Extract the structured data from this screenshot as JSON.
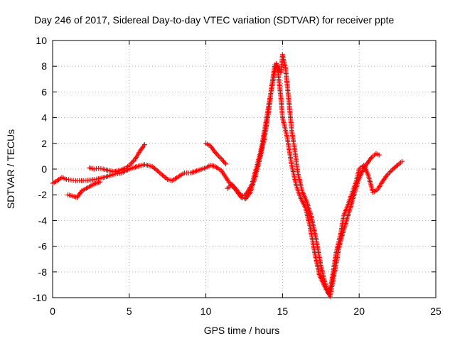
{
  "chart_data": {
    "type": "scatter",
    "title": "Day 246 of 2017, Sidereal Day-to-day VTEC variation (SDTVAR) for receiver ppte",
    "xlabel": "GPS time / hours",
    "ylabel": "SDTVAR / TECUs",
    "xlim": [
      0,
      25
    ],
    "ylim": [
      -10,
      10
    ],
    "xticks": [
      "0",
      "5",
      "10",
      "15",
      "20",
      "25"
    ],
    "yticks": [
      "-10",
      "-8",
      "-6",
      "-4",
      "-2",
      "0",
      "2",
      "4",
      "6",
      "8",
      "10"
    ],
    "grid": true,
    "marker": "+",
    "color": "#ff0000",
    "series": [
      {
        "points": [
          [
            0.0,
            -1.1
          ],
          [
            0.3,
            -0.9
          ],
          [
            0.6,
            -0.65
          ],
          [
            0.9,
            -0.8
          ],
          [
            1.2,
            -0.85
          ],
          [
            1.5,
            -0.9
          ],
          [
            2.0,
            -0.9
          ],
          [
            2.5,
            -0.85
          ],
          [
            3.0,
            -0.75
          ],
          [
            3.5,
            -0.6
          ],
          [
            4.0,
            -0.4
          ],
          [
            4.5,
            -0.3
          ],
          [
            5.0,
            0.0
          ],
          [
            5.5,
            0.2
          ],
          [
            6.0,
            0.35
          ],
          [
            6.5,
            0.2
          ],
          [
            7.0,
            -0.3
          ],
          [
            7.5,
            -0.8
          ],
          [
            7.8,
            -0.9
          ],
          [
            8.2,
            -0.6
          ],
          [
            8.6,
            -0.3
          ],
          [
            9.0,
            -0.3
          ],
          [
            9.5,
            -0.1
          ],
          [
            10.0,
            0.1
          ],
          [
            10.3,
            0.3
          ],
          [
            10.6,
            0.2
          ],
          [
            11.0,
            -0.1
          ],
          [
            11.5,
            -1.0
          ],
          [
            12.0,
            -1.7
          ],
          [
            12.3,
            -2.2
          ],
          [
            12.6,
            -2.3
          ],
          [
            12.9,
            -1.8
          ],
          [
            13.2,
            -0.7
          ],
          [
            13.5,
            0.7
          ],
          [
            13.8,
            2.3
          ],
          [
            14.1,
            4.5
          ],
          [
            14.3,
            6.5
          ],
          [
            14.5,
            8.1
          ],
          [
            14.7,
            7.6
          ],
          [
            14.9,
            5.5
          ],
          [
            15.0,
            4.0
          ],
          [
            15.3,
            2.5
          ],
          [
            15.6,
            0.3
          ],
          [
            15.9,
            -1.3
          ],
          [
            16.2,
            -2.3
          ],
          [
            16.5,
            -3.0
          ],
          [
            16.8,
            -4.5
          ],
          [
            17.1,
            -6.5
          ],
          [
            17.4,
            -8.2
          ],
          [
            17.7,
            -9.0
          ],
          [
            18.0,
            -9.7
          ],
          [
            18.2,
            -8.8
          ],
          [
            18.5,
            -6.5
          ],
          [
            18.8,
            -5.0
          ],
          [
            19.0,
            -3.6
          ],
          [
            19.2,
            -3.0
          ],
          [
            19.5,
            -2.0
          ],
          [
            19.8,
            -1.0
          ],
          [
            20.0,
            0.0
          ],
          [
            20.3,
            0.3
          ],
          [
            20.6,
            -0.5
          ],
          [
            20.9,
            -1.8
          ],
          [
            21.2,
            -1.6
          ],
          [
            21.5,
            -1.0
          ],
          [
            21.8,
            -0.5
          ],
          [
            22.2,
            0.0
          ],
          [
            22.6,
            0.4
          ],
          [
            22.8,
            0.6
          ]
        ]
      },
      {
        "points": [
          [
            1.0,
            -2.0
          ],
          [
            1.3,
            -2.1
          ],
          [
            1.6,
            -2.2
          ],
          [
            1.9,
            -1.7
          ],
          [
            2.2,
            -1.5
          ],
          [
            2.5,
            -1.3
          ],
          [
            2.8,
            -1.1
          ],
          [
            3.1,
            -1.0
          ]
        ]
      },
      {
        "points": [
          [
            2.4,
            0.1
          ],
          [
            2.7,
            0.0
          ],
          [
            3.0,
            0.05
          ],
          [
            3.3,
            0.0
          ],
          [
            3.6,
            -0.1
          ],
          [
            4.0,
            -0.2
          ],
          [
            4.4,
            -0.1
          ],
          [
            4.8,
            0.1
          ],
          [
            5.1,
            0.4
          ],
          [
            5.4,
            0.8
          ],
          [
            5.7,
            1.4
          ],
          [
            6.0,
            1.9
          ]
        ]
      },
      {
        "points": [
          [
            10.0,
            2.0
          ],
          [
            10.3,
            1.8
          ],
          [
            10.6,
            1.3
          ],
          [
            11.0,
            0.8
          ],
          [
            11.3,
            0.4
          ]
        ]
      },
      {
        "points": [
          [
            11.4,
            -1.5
          ],
          [
            11.7,
            -1.2
          ],
          [
            12.0,
            -1.6
          ],
          [
            12.3,
            -2.1
          ],
          [
            12.6,
            -2.0
          ],
          [
            13.0,
            -1.2
          ],
          [
            13.3,
            0.1
          ],
          [
            13.6,
            1.5
          ],
          [
            13.9,
            3.5
          ],
          [
            14.1,
            5.0
          ],
          [
            14.4,
            7.0
          ],
          [
            14.6,
            8.2
          ],
          [
            14.9,
            7.5
          ],
          [
            15.0,
            8.9
          ],
          [
            15.2,
            7.8
          ],
          [
            15.4,
            5.5
          ],
          [
            15.6,
            3.0
          ],
          [
            15.8,
            1.5
          ],
          [
            16.0,
            -0.3
          ],
          [
            16.3,
            -1.8
          ],
          [
            16.6,
            -2.6
          ],
          [
            16.9,
            -3.8
          ],
          [
            17.2,
            -5.5
          ],
          [
            17.5,
            -7.5
          ],
          [
            17.8,
            -9.0
          ],
          [
            18.1,
            -9.9
          ],
          [
            18.4,
            -8.0
          ],
          [
            18.7,
            -6.0
          ],
          [
            19.0,
            -4.7
          ],
          [
            19.3,
            -3.5
          ],
          [
            19.6,
            -2.3
          ],
          [
            19.9,
            -1.0
          ],
          [
            20.2,
            -0.2
          ],
          [
            20.5,
            0.4
          ],
          [
            20.8,
            0.9
          ],
          [
            21.1,
            1.2
          ],
          [
            21.3,
            1.1
          ]
        ]
      }
    ]
  }
}
